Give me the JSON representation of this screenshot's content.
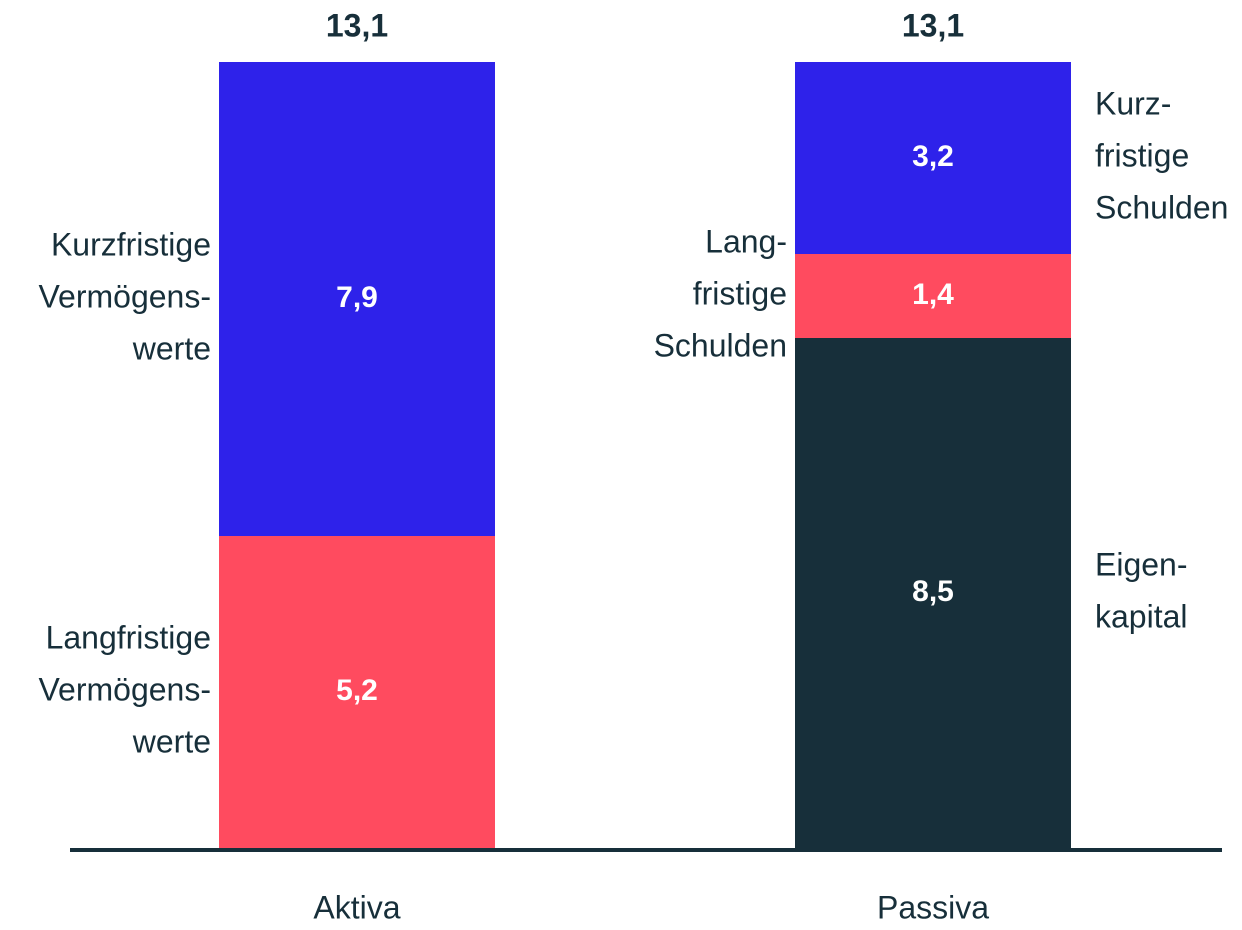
{
  "chart_data": {
    "type": "stacked_bar",
    "categories": [
      "Aktiva",
      "Passiva"
    ],
    "series": [
      {
        "label": [
          "Langfristige",
          "Vermögens-",
          "werte"
        ],
        "label_side": "left",
        "color": "#ff4b5f",
        "values": [
          5.2,
          null
        ],
        "value_labels": [
          "5,2",
          null
        ]
      },
      {
        "label": [
          "Kurzfristige",
          "Vermögens-",
          "werte"
        ],
        "label_side": "left",
        "color": "#2e22ea",
        "values": [
          7.9,
          null
        ],
        "value_labels": [
          "7,9",
          null
        ]
      },
      {
        "label": [
          "Eigen-",
          "kapital"
        ],
        "label_side": "right",
        "color": "#172f3a",
        "values": [
          null,
          8.5
        ],
        "value_labels": [
          null,
          "8,5"
        ]
      },
      {
        "label": [
          "Lang-",
          "fristige",
          "Schulden"
        ],
        "label_side": "left",
        "color": "#ff4b5f",
        "values": [
          null,
          1.4
        ],
        "value_labels": [
          null,
          "1,4"
        ]
      },
      {
        "label": [
          "Kurz-",
          "fristige",
          "Schulden"
        ],
        "label_side": "right",
        "color": "#2e22ea",
        "values": [
          null,
          3.2
        ],
        "value_labels": [
          null,
          "3,2"
        ]
      }
    ],
    "totals": [
      {
        "value": 13.1,
        "label": "13,1"
      },
      {
        "value": 13.1,
        "label": "13,1"
      }
    ],
    "ylim": [
      0,
      13.1
    ]
  }
}
